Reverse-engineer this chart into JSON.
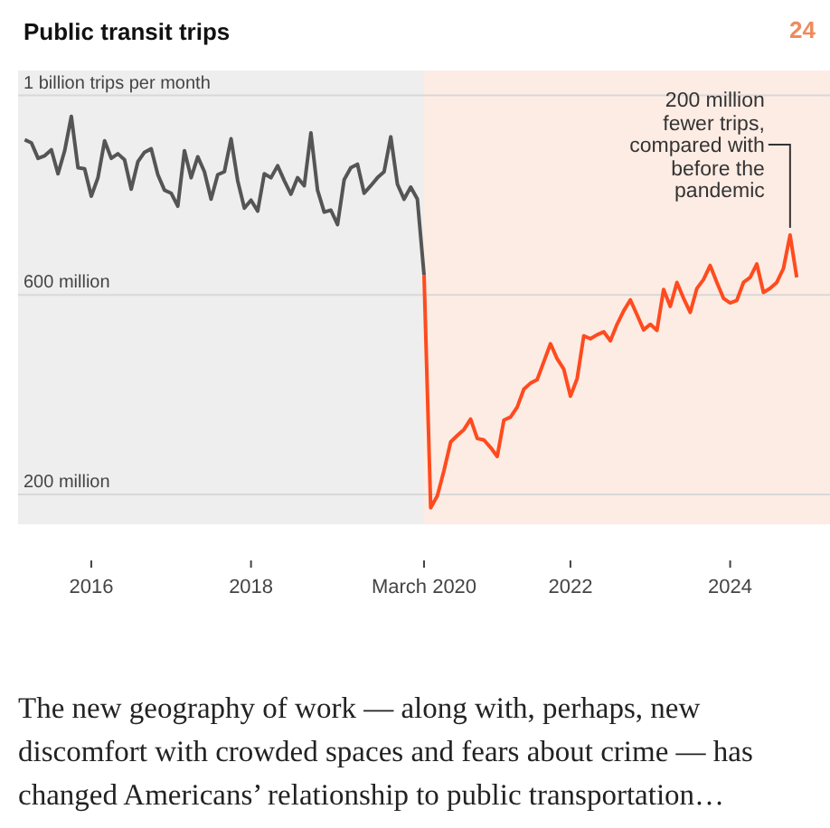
{
  "chart_data": {
    "type": "line",
    "title": "Public transit trips",
    "xlim": [
      "2015-02",
      "2025-04"
    ],
    "xticks": [
      "2016",
      "2018",
      {
        "value": "2020-03",
        "label": "March 2020"
      },
      "2022",
      "2024"
    ],
    "ylim": [
      140000000,
      1050000000
    ],
    "yticks": [
      {
        "value": 200000000,
        "label": "200 million"
      },
      {
        "value": 600000000,
        "label": "600 million"
      },
      {
        "value": 1000000000,
        "label": "1 billion trips per month"
      }
    ],
    "grid": "y",
    "marker": "none",
    "line_style": "solid",
    "bands": [
      {
        "axis": "x",
        "from": "2015-02",
        "to": "2020-03",
        "color": "#eeeeee"
      },
      {
        "axis": "x",
        "from": "2020-03",
        "to": "2025-04",
        "color": "#fdece4"
      }
    ],
    "series": [
      {
        "color": "#555555",
        "x": [
          "2015-03",
          "2015-04",
          "2015-05",
          "2015-06",
          "2015-07",
          "2015-08",
          "2015-09",
          "2015-10",
          "2015-11",
          "2015-12",
          "2016-01",
          "2016-02",
          "2016-03",
          "2016-04",
          "2016-05",
          "2016-06",
          "2016-07",
          "2016-08",
          "2016-09",
          "2016-10",
          "2016-11",
          "2016-12",
          "2017-01",
          "2017-02",
          "2017-03",
          "2017-04",
          "2017-05",
          "2017-06",
          "2017-07",
          "2017-08",
          "2017-09",
          "2017-10",
          "2017-11",
          "2017-12",
          "2018-01",
          "2018-02",
          "2018-03",
          "2018-04",
          "2018-05",
          "2018-06",
          "2018-07",
          "2018-08",
          "2018-09",
          "2018-10",
          "2018-11",
          "2018-12",
          "2019-01",
          "2019-02",
          "2019-03",
          "2019-04",
          "2019-05",
          "2019-06",
          "2019-07",
          "2019-08",
          "2019-09",
          "2019-10",
          "2019-11",
          "2019-12",
          "2020-01",
          "2020-02",
          "2020-03"
        ],
        "values": [
          911000000,
          905000000,
          874000000,
          879000000,
          891000000,
          843000000,
          889000000,
          958000000,
          855000000,
          853000000,
          798000000,
          835000000,
          909000000,
          874000000,
          883000000,
          871000000,
          812000000,
          867000000,
          886000000,
          893000000,
          841000000,
          810000000,
          804000000,
          778000000,
          889000000,
          835000000,
          877000000,
          847000000,
          792000000,
          841000000,
          847000000,
          913000000,
          829000000,
          774000000,
          790000000,
          768000000,
          843000000,
          835000000,
          859000000,
          829000000,
          802000000,
          835000000,
          819000000,
          925000000,
          810000000,
          766000000,
          770000000,
          741000000,
          831000000,
          855000000,
          862000000,
          804000000,
          819000000,
          835000000,
          847000000,
          917000000,
          822000000,
          792000000,
          816000000,
          792000000,
          640000000
        ]
      },
      {
        "color": "#ff4b1f",
        "x": [
          "2020-03",
          "2020-04",
          "2020-05",
          "2020-06",
          "2020-07",
          "2020-08",
          "2020-09",
          "2020-10",
          "2020-11",
          "2020-12",
          "2021-01",
          "2021-02",
          "2021-03",
          "2021-04",
          "2021-05",
          "2021-06",
          "2021-07",
          "2021-08",
          "2021-09",
          "2021-10",
          "2021-11",
          "2021-12",
          "2022-01",
          "2022-02",
          "2022-03",
          "2022-04",
          "2022-05",
          "2022-06",
          "2022-07",
          "2022-08",
          "2022-09",
          "2022-10",
          "2022-11",
          "2022-12",
          "2023-01",
          "2023-02",
          "2023-03",
          "2023-04",
          "2023-05",
          "2023-06",
          "2023-07",
          "2023-08",
          "2023-09",
          "2023-10",
          "2023-11",
          "2023-12",
          "2024-01",
          "2024-02",
          "2024-03",
          "2024-04",
          "2024-05",
          "2024-06",
          "2024-07",
          "2024-08",
          "2024-09",
          "2024-10",
          "2024-11"
        ],
        "values": [
          640000000,
          173000000,
          197000000,
          248000000,
          305000000,
          318000000,
          330000000,
          351000000,
          312000000,
          309000000,
          294000000,
          276000000,
          349000000,
          355000000,
          375000000,
          411000000,
          423000000,
          430000000,
          466000000,
          502000000,
          472000000,
          451000000,
          397000000,
          432000000,
          518000000,
          512000000,
          520000000,
          526000000,
          508000000,
          541000000,
          568000000,
          590000000,
          560000000,
          530000000,
          541000000,
          529000000,
          611000000,
          577000000,
          625000000,
          593000000,
          565000000,
          613000000,
          631000000,
          659000000,
          625000000,
          593000000,
          584000000,
          589000000,
          625000000,
          635000000,
          662000000,
          605000000,
          613000000,
          625000000,
          653000000,
          720000000,
          635000000
        ]
      }
    ],
    "annotations": [
      "24",
      {
        "text": "200 million fewer trips, compared with before the pandemic",
        "x": "2024-10",
        "y": 720000000
      },
      "The new geography of work — along with, perhaps, new discomfort with crowded spaces and fears about crime — has changed Americans’ relationship to public transportation…"
    ]
  }
}
